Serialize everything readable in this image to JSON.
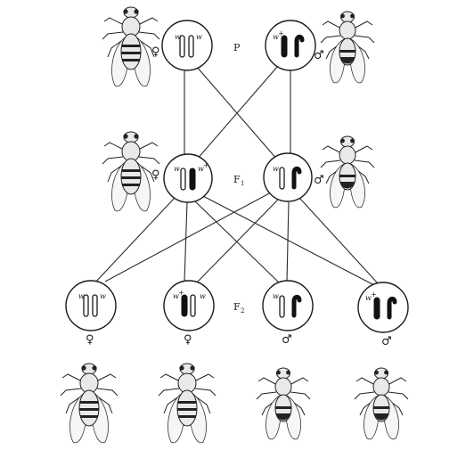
{
  "generation_labels": {
    "p": "P",
    "f1": "F",
    "f1_sub": "1",
    "f2": "F",
    "f2_sub": "2"
  },
  "sex_symbols": {
    "female": "♀",
    "male": "♂"
  },
  "allele_labels": {
    "white": "w",
    "wild": "w",
    "wild_sup": "+"
  },
  "individuals": [
    {
      "id": "p-female",
      "generation": "P",
      "sex": "female",
      "genotype": "w/w"
    },
    {
      "id": "p-male",
      "generation": "P",
      "sex": "male",
      "genotype": "w+/Y"
    },
    {
      "id": "f1-female",
      "generation": "F1",
      "sex": "female",
      "genotype": "w/w+"
    },
    {
      "id": "f1-male",
      "generation": "F1",
      "sex": "male",
      "genotype": "w/Y"
    },
    {
      "id": "f2-female-1",
      "generation": "F2",
      "sex": "female",
      "genotype": "w/w"
    },
    {
      "id": "f2-female-2",
      "generation": "F2",
      "sex": "female",
      "genotype": "w+/w"
    },
    {
      "id": "f2-male-1",
      "generation": "F2",
      "sex": "male",
      "genotype": "w/Y"
    },
    {
      "id": "f2-male-2",
      "generation": "F2",
      "sex": "male",
      "genotype": "w+/Y"
    }
  ]
}
